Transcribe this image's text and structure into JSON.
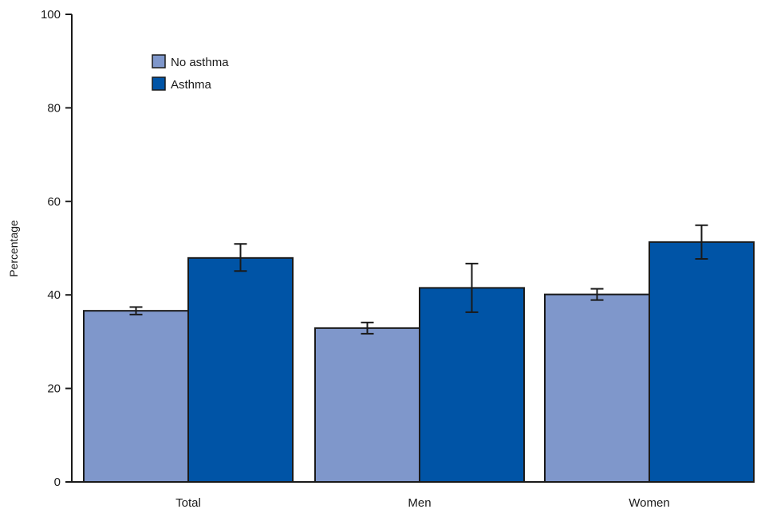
{
  "chart_data": {
    "type": "bar",
    "title": "",
    "xlabel": "",
    "ylabel": "Percentage",
    "ylim": [
      0,
      100
    ],
    "yticks": [
      0,
      20,
      40,
      60,
      80,
      100
    ],
    "categories": [
      "Total",
      "Men",
      "Women"
    ],
    "series": [
      {
        "name": "No asthma",
        "color": "#7f97cb",
        "values": [
          36.6,
          32.9,
          40.1
        ],
        "error_low": [
          35.8,
          31.7,
          38.9
        ],
        "error_high": [
          37.4,
          34.1,
          41.3
        ]
      },
      {
        "name": "Asthma",
        "color": "#0054a6",
        "values": [
          47.9,
          41.5,
          51.3
        ],
        "error_low": [
          45.1,
          36.3,
          47.7
        ],
        "error_high": [
          50.9,
          46.7,
          54.9
        ]
      }
    ],
    "grid": false,
    "legend_position": "top-left",
    "error_bars": true
  }
}
